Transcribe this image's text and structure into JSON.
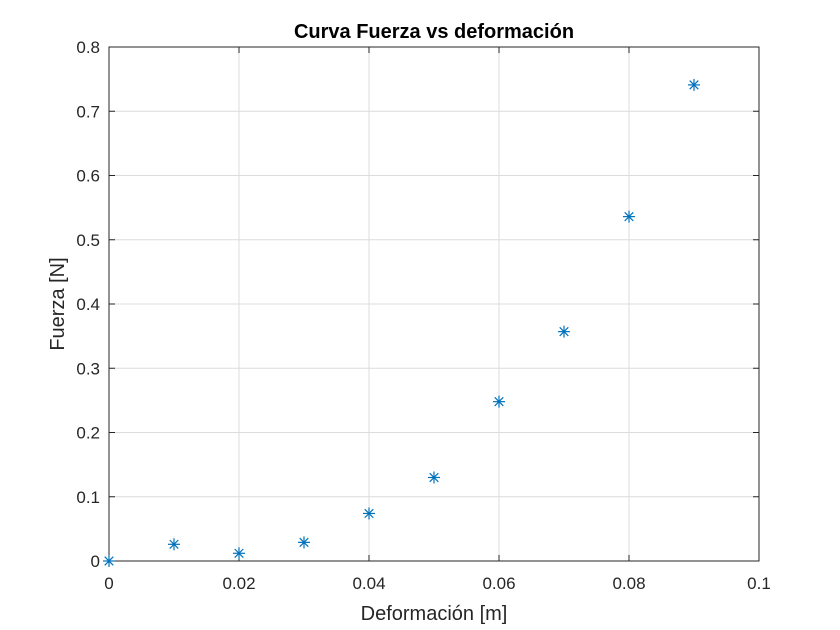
{
  "chart_data": {
    "type": "scatter",
    "title": "Curva Fuerza vs deformación",
    "xlabel": "Deformación [m]",
    "ylabel": "Fuerza [N]",
    "xlim": [
      0,
      0.1
    ],
    "ylim": [
      0,
      0.8
    ],
    "grid": true,
    "x_ticks": [
      "0",
      "0.02",
      "0.04",
      "0.06",
      "0.08",
      "0.1"
    ],
    "y_ticks": [
      "0",
      "0.1",
      "0.2",
      "0.3",
      "0.4",
      "0.5",
      "0.6",
      "0.7",
      "0.8"
    ],
    "marker": "asterisk",
    "series": [
      {
        "color": "#0072BD",
        "x": [
          0,
          0.01,
          0.02,
          0.03,
          0.04,
          0.05,
          0.06,
          0.07,
          0.08,
          0.09
        ],
        "y": [
          0.0,
          0.026,
          0.012,
          0.029,
          0.074,
          0.13,
          0.248,
          0.357,
          0.536,
          0.741
        ]
      }
    ]
  }
}
